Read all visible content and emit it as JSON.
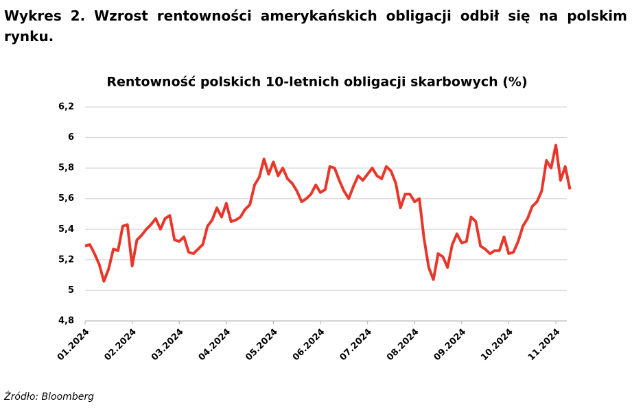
{
  "heading": "Wykres 2. Wzrost rentowności amerykańskich obligacji odbił się na polskim rynku.",
  "source": "Źródło: Bloomberg",
  "chart_data": {
    "type": "line",
    "title": "Rentowność polskich 10-letnich obligacji skarbowych (%)",
    "categories": [
      "01.2024",
      null,
      null,
      null,
      null,
      null,
      null,
      null,
      null,
      null,
      "02.2024",
      null,
      null,
      null,
      null,
      null,
      null,
      null,
      null,
      null,
      "03.2024",
      null,
      null,
      null,
      null,
      null,
      null,
      null,
      null,
      null,
      "04.2024",
      null,
      null,
      null,
      null,
      null,
      null,
      null,
      null,
      null,
      "05.2024",
      null,
      null,
      null,
      null,
      null,
      null,
      null,
      null,
      null,
      "06.2024",
      null,
      null,
      null,
      null,
      null,
      null,
      null,
      null,
      null,
      "07.2024",
      null,
      null,
      null,
      null,
      null,
      null,
      null,
      null,
      null,
      "08.2024",
      null,
      null,
      null,
      null,
      null,
      null,
      null,
      null,
      null,
      "09.2024",
      null,
      null,
      null,
      null,
      null,
      null,
      null,
      null,
      null,
      "10.2024",
      null,
      null,
      null,
      null,
      null,
      null,
      null,
      null,
      null,
      "11.2024",
      null,
      null,
      null
    ],
    "values": [
      5.29,
      5.3,
      5.24,
      5.17,
      5.06,
      5.14,
      5.27,
      5.26,
      5.42,
      5.43,
      5.16,
      5.33,
      5.36,
      5.4,
      5.43,
      5.47,
      5.4,
      5.47,
      5.49,
      5.33,
      5.32,
      5.35,
      5.25,
      5.24,
      5.27,
      5.3,
      5.42,
      5.46,
      5.54,
      5.48,
      5.57,
      5.45,
      5.46,
      5.48,
      5.53,
      5.56,
      5.69,
      5.74,
      5.86,
      5.76,
      5.84,
      5.75,
      5.8,
      5.73,
      5.7,
      5.65,
      5.58,
      5.6,
      5.63,
      5.69,
      5.64,
      5.66,
      5.81,
      5.8,
      5.72,
      5.65,
      5.6,
      5.68,
      5.75,
      5.72,
      5.76,
      5.8,
      5.75,
      5.73,
      5.81,
      5.78,
      5.7,
      5.54,
      5.63,
      5.63,
      5.58,
      5.6,
      5.34,
      5.15,
      5.07,
      5.24,
      5.22,
      5.15,
      5.3,
      5.37,
      5.31,
      5.32,
      5.48,
      5.45,
      5.29,
      5.27,
      5.24,
      5.26,
      5.26,
      5.35,
      5.24,
      5.25,
      5.32,
      5.42,
      5.47,
      5.55,
      5.58,
      5.65,
      5.85,
      5.8,
      5.95,
      5.72,
      5.81,
      5.66
    ],
    "color": "#e8372a",
    "ylim": [
      4.8,
      6.2
    ],
    "yticks": [
      {
        "value": 4.8,
        "label": "4,8"
      },
      5,
      {
        "value": 5.2,
        "label": "5,2"
      },
      {
        "value": 5.4,
        "label": "5,4"
      },
      {
        "value": 5.6,
        "label": "5,6"
      },
      {
        "value": 5.8,
        "label": "5,8"
      },
      6,
      {
        "value": 6.2,
        "label": "6,2"
      }
    ],
    "grid": true
  }
}
